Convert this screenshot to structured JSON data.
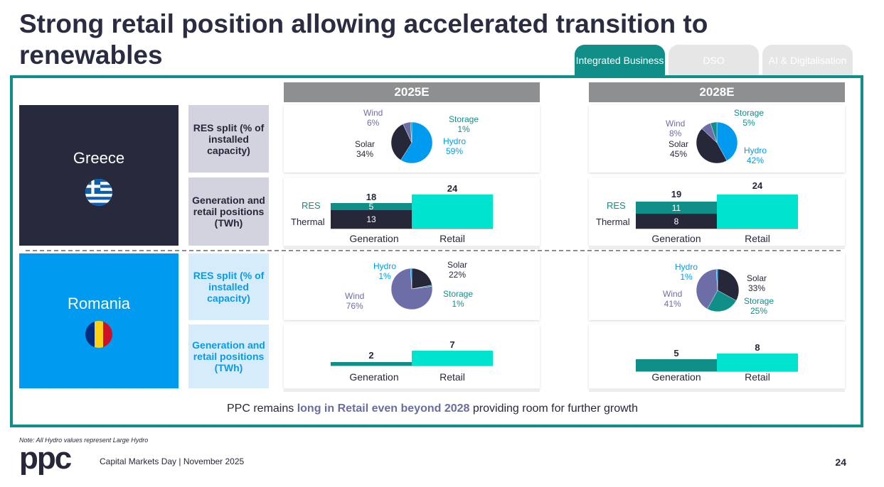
{
  "title": "Strong retail position allowing accelerated transition to renewables",
  "tabs": [
    {
      "label": "Integrated Business",
      "active": true
    },
    {
      "label": "DSO",
      "active": false
    },
    {
      "label": "AI & Digitalisation",
      "active": false
    }
  ],
  "columns": {
    "y2025": "2025E",
    "y2028": "2028E"
  },
  "countries": {
    "greece": {
      "name": "Greece",
      "res_label": "RES split (% of installed capacity)",
      "gen_label": "Generation and retail positions (TWh)"
    },
    "romania": {
      "name": "Romania",
      "res_label": "RES split (% of installed capacity)",
      "gen_label": "Generation and retail positions (TWh)"
    }
  },
  "pie_labels": {
    "gr25": {
      "wind": "Wind",
      "wind_v": "6%",
      "storage": "Storage",
      "storage_v": "1%",
      "solar": "Solar",
      "solar_v": "34%",
      "hydro": "Hydro",
      "hydro_v": "59%"
    },
    "gr28": {
      "wind": "Wind",
      "wind_v": "8%",
      "storage": "Storage",
      "storage_v": "5%",
      "solar": "Solar",
      "solar_v": "45%",
      "hydro": "Hydro",
      "hydro_v": "42%"
    },
    "ro25": {
      "hydro": "Hydro",
      "hydro_v": "1%",
      "solar": "Solar",
      "solar_v": "22%",
      "wind": "Wind",
      "wind_v": "76%",
      "storage": "Storage",
      "storage_v": "1%"
    },
    "ro28": {
      "hydro": "Hydro",
      "hydro_v": "1%",
      "solar": "Solar",
      "solar_v": "33%",
      "wind": "Wind",
      "wind_v": "41%",
      "storage": "Storage",
      "storage_v": "25%"
    }
  },
  "bar_labels": {
    "res": "RES",
    "thermal": "Thermal",
    "generation": "Generation",
    "retail": "Retail",
    "gr25": {
      "gen_total": "18",
      "res": "5",
      "thermal": "13",
      "retail": "24"
    },
    "gr28": {
      "gen_total": "19",
      "res": "11",
      "thermal": "8",
      "retail": "24"
    },
    "ro25": {
      "gen_total": "2",
      "retail": "7"
    },
    "ro28": {
      "gen_total": "5",
      "retail": "8"
    }
  },
  "chart_data": [
    {
      "type": "pie",
      "title": "Greece RES split 2025E",
      "labels": [
        "Hydro",
        "Solar",
        "Wind",
        "Storage"
      ],
      "values": [
        59,
        34,
        6,
        1
      ]
    },
    {
      "type": "pie",
      "title": "Greece RES split 2028E",
      "labels": [
        "Hydro",
        "Solar",
        "Wind",
        "Storage"
      ],
      "values": [
        42,
        45,
        8,
        5
      ]
    },
    {
      "type": "pie",
      "title": "Romania RES split 2025E",
      "labels": [
        "Solar",
        "Storage",
        "Wind",
        "Hydro"
      ],
      "values": [
        22,
        1,
        76,
        1
      ]
    },
    {
      "type": "pie",
      "title": "Romania RES split 2028E",
      "labels": [
        "Solar",
        "Storage",
        "Wind",
        "Hydro"
      ],
      "values": [
        33,
        25,
        41,
        1
      ]
    },
    {
      "type": "bar",
      "title": "Greece generation and retail positions 2025E (TWh)",
      "categories": [
        "Generation",
        "Retail"
      ],
      "series": [
        {
          "name": "Thermal",
          "values": [
            13,
            0
          ]
        },
        {
          "name": "RES",
          "values": [
            5,
            0
          ]
        },
        {
          "name": "Retail",
          "values": [
            0,
            24
          ]
        }
      ]
    },
    {
      "type": "bar",
      "title": "Greece generation and retail positions 2028E (TWh)",
      "categories": [
        "Generation",
        "Retail"
      ],
      "series": [
        {
          "name": "Thermal",
          "values": [
            8,
            0
          ]
        },
        {
          "name": "RES",
          "values": [
            11,
            0
          ]
        },
        {
          "name": "Retail",
          "values": [
            0,
            24
          ]
        }
      ]
    },
    {
      "type": "bar",
      "title": "Romania generation and retail positions 2025E (TWh)",
      "categories": [
        "Generation",
        "Retail"
      ],
      "values": [
        2,
        7
      ]
    },
    {
      "type": "bar",
      "title": "Romania generation and retail positions 2028E (TWh)",
      "categories": [
        "Generation",
        "Retail"
      ],
      "values": [
        5,
        8
      ]
    }
  ],
  "bottom": {
    "pre": "PPC remains ",
    "highlight": "long in Retail even beyond 2028",
    "post": " providing room for further growth"
  },
  "footer": {
    "note": "Note: All Hydro values represent Large Hydro",
    "logo": "ppc",
    "event": "Capital Markets Day | November 2025",
    "page": "24"
  },
  "colors": {
    "navy": "#26283a",
    "blue": "#009bf0",
    "teal": "#0f8f88",
    "aqua": "#00e3cf",
    "wind": "#6d6ea8",
    "grey": "#8e8f90"
  }
}
